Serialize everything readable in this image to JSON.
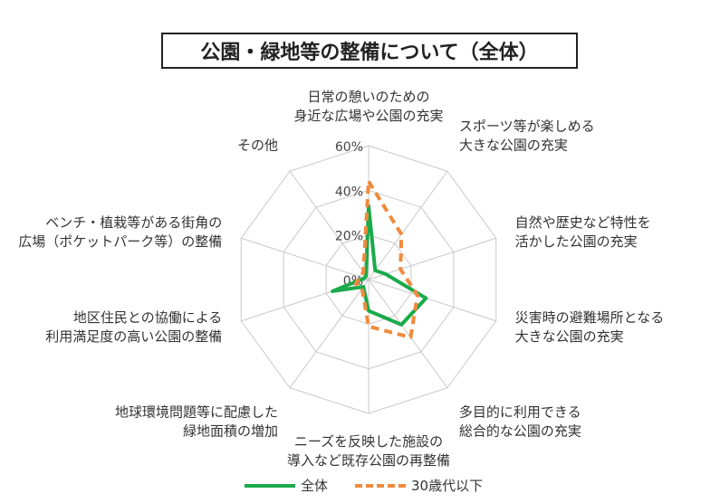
{
  "chart_data": {
    "type": "radar",
    "title": "公園・緑地等の整備について（全体）",
    "categories": [
      [
        "日常の憩いのための",
        "身近な広場や公園の充実"
      ],
      [
        "スポーツ等が楽しめる",
        "大きな公園の充実"
      ],
      [
        "自然や歴史など特性を",
        "活かした公園の充実"
      ],
      [
        "災害時の避難場所となる",
        "大きな公園の充実"
      ],
      [
        "多目的に利用できる",
        "総合的な公園の充実"
      ],
      [
        "ニーズを反映した施設の",
        "導入など既存公園の再整備"
      ],
      [
        "地球環境問題等に配慮した",
        "緑地面積の増加"
      ],
      [
        "地区住民との協働による",
        "利用満足度の高い公園の整備"
      ],
      [
        "ベンチ・植栽等がある街角の",
        "広場（ポケットパーク等）の整備"
      ],
      [
        "その他"
      ]
    ],
    "rmax": 60,
    "ticks": [
      0,
      20,
      40,
      60
    ],
    "tick_labels": [
      "0%",
      "20%",
      "40%",
      "60%"
    ],
    "series": [
      {
        "name": "全体",
        "color": "#1aaa4b",
        "dash": "solid",
        "values": [
          33,
          5,
          8,
          27,
          25,
          14,
          4,
          17,
          2,
          2
        ]
      },
      {
        "name": "30歳代以下",
        "color": "#f08a3c",
        "dash": "dashed",
        "values": [
          44,
          25,
          15,
          23,
          32,
          21,
          5,
          6,
          4,
          4
        ]
      }
    ]
  }
}
